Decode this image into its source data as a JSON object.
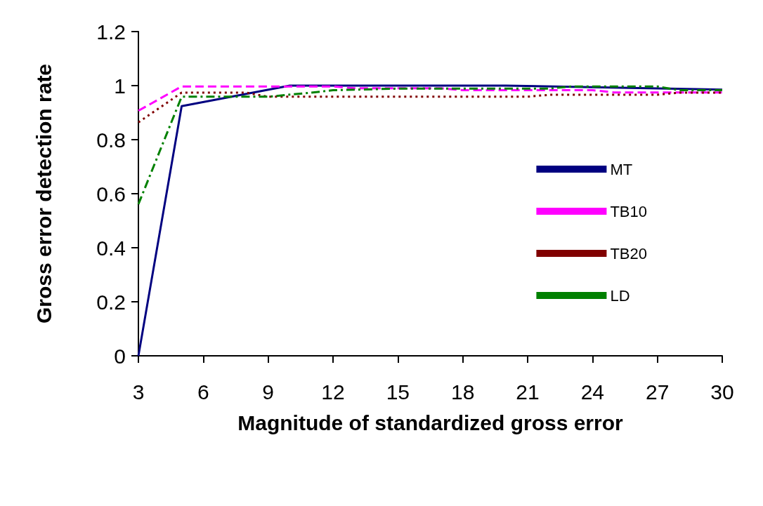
{
  "chart_data": {
    "type": "line",
    "xlabel": "Magnitude of standardized gross error",
    "ylabel": "Gross error detection rate",
    "xlim": [
      3,
      30
    ],
    "xticks": [
      3,
      6,
      9,
      12,
      15,
      18,
      21,
      24,
      27,
      30
    ],
    "ylim": [
      0,
      1.2
    ],
    "yticks": [
      0,
      0.2,
      0.4,
      0.6,
      0.8,
      1,
      1.2
    ],
    "grid": false,
    "legend": "right",
    "marker": "none",
    "series": [
      {
        "name": "MT",
        "color": "#000080",
        "line_style": "solid",
        "x": [
          3,
          5,
          10,
          20,
          30
        ],
        "values": [
          0,
          0.924,
          1,
          1,
          0.985
        ]
      },
      {
        "name": "TB10",
        "color": "#ff00ff",
        "line_style": "dashed",
        "x": [
          3,
          5,
          12,
          13,
          17,
          18,
          24,
          25,
          30
        ],
        "values": [
          0.907,
          0.997,
          0.997,
          0.99,
          0.99,
          0.983,
          0.983,
          0.975,
          0.975
        ]
      },
      {
        "name": "TB20",
        "color": "#800000",
        "line_style": "dotted",
        "x": [
          3,
          5,
          8,
          9,
          21,
          22,
          27,
          28,
          30
        ],
        "values": [
          0.864,
          0.974,
          0.974,
          0.959,
          0.959,
          0.966,
          0.966,
          0.974,
          0.974
        ]
      },
      {
        "name": "LD",
        "color": "#008000",
        "line_style": "dashdot",
        "x": [
          3,
          5,
          9,
          11,
          12,
          15,
          22,
          23,
          27,
          28,
          30
        ],
        "values": [
          0.561,
          0.959,
          0.959,
          0.974,
          0.983,
          0.989,
          0.989,
          0.997,
          0.997,
          0.983,
          0.983
        ]
      }
    ]
  }
}
